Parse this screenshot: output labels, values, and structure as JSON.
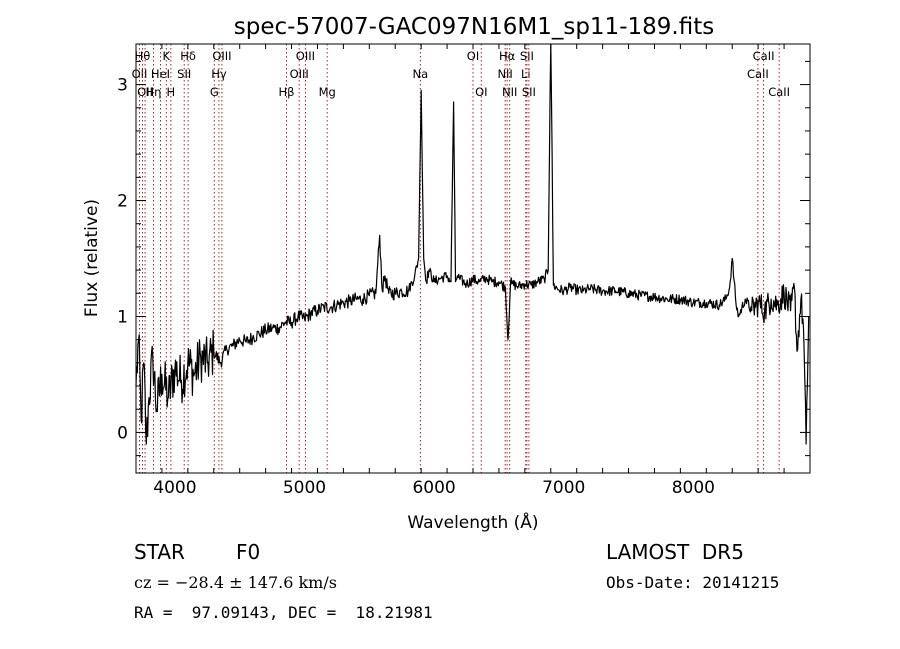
{
  "chart_data": {
    "type": "line",
    "title": "spec-57007-GAC097N16M1_sp11-189.fits",
    "xlabel": "Wavelength (Å)",
    "ylabel": "Flux (relative)",
    "xlim": [
      3700,
      8900
    ],
    "ylim": [
      -0.35,
      3.35
    ],
    "xticks": [
      4000,
      5000,
      6000,
      7000,
      8000
    ],
    "yticks": [
      0,
      1,
      2,
      3
    ],
    "grid": false,
    "colors": {
      "spectrum": "#000000",
      "line_marker": "#b22222",
      "axes": "#000000"
    },
    "series": [
      {
        "x": [
          3700,
          3720,
          3740,
          3760,
          3780,
          3800,
          3830,
          3860,
          3900,
          3950,
          4000,
          4050,
          4100,
          4150,
          4200,
          4250,
          4300,
          4350,
          4400,
          4450,
          4500,
          4550,
          4600,
          4650,
          4700,
          4750,
          4800,
          4850,
          4900,
          4950,
          5000,
          5050,
          5100,
          5150,
          5200,
          5250,
          5300,
          5350,
          5400,
          5450,
          5500,
          5550,
          5580,
          5600,
          5620,
          5650,
          5700,
          5750,
          5800,
          5850,
          5880,
          5900,
          5920,
          5940,
          5960,
          6000,
          6050,
          6100,
          6130,
          6150,
          6165,
          6180,
          6200,
          6250,
          6300,
          6350,
          6400,
          6450,
          6500,
          6550,
          6570,
          6590,
          6600,
          6650,
          6700,
          6750,
          6800,
          6850,
          6880,
          6900,
          6920,
          6950,
          7000,
          7050,
          7100,
          7150,
          7200,
          7300,
          7400,
          7500,
          7600,
          7700,
          7800,
          7900,
          8000,
          8100,
          8200,
          8250,
          8280,
          8300,
          8330,
          8350,
          8400,
          8450,
          8500,
          8550,
          8600,
          8650,
          8700,
          8750,
          8780,
          8800,
          8830,
          8850,
          8870,
          8890
        ],
        "y": [
          0.4,
          0.8,
          0.1,
          0.6,
          -0.1,
          0.3,
          0.65,
          0.2,
          0.5,
          0.3,
          0.55,
          0.45,
          0.6,
          0.5,
          0.65,
          0.6,
          0.7,
          0.6,
          0.72,
          0.75,
          0.8,
          0.78,
          0.82,
          0.85,
          0.88,
          0.9,
          0.9,
          0.95,
          0.95,
          1.0,
          0.98,
          1.03,
          1.05,
          1.08,
          1.08,
          1.1,
          1.12,
          1.13,
          1.15,
          1.15,
          1.18,
          1.2,
          1.7,
          1.22,
          1.35,
          1.2,
          1.2,
          1.22,
          1.22,
          1.35,
          1.5,
          2.95,
          1.5,
          1.3,
          1.4,
          1.3,
          1.33,
          1.35,
          1.3,
          2.85,
          1.3,
          1.35,
          1.32,
          1.28,
          1.32,
          1.3,
          1.33,
          1.3,
          1.3,
          1.25,
          0.8,
          1.3,
          1.28,
          1.26,
          1.28,
          1.27,
          1.3,
          1.32,
          1.4,
          3.5,
          1.27,
          1.24,
          1.22,
          1.25,
          1.23,
          1.22,
          1.24,
          1.22,
          1.22,
          1.2,
          1.18,
          1.17,
          1.15,
          1.15,
          1.12,
          1.12,
          1.1,
          1.15,
          1.25,
          1.5,
          1.1,
          1.0,
          1.15,
          1.05,
          1.12,
          1.05,
          1.15,
          1.1,
          1.2,
          1.05,
          1.25,
          0.7,
          1.15,
          0.9,
          -0.1,
          1.0
        ]
      }
    ],
    "line_markers": [
      {
        "wavelength": 3727,
        "label": "OII",
        "row": 1
      },
      {
        "wavelength": 3750,
        "label": "Hθ",
        "row": 0
      },
      {
        "wavelength": 3770,
        "label": "OII",
        "row": 2
      },
      {
        "wavelength": 3835,
        "label": "Hη",
        "row": 2
      },
      {
        "wavelength": 3889,
        "label": "HeI",
        "row": 1
      },
      {
        "wavelength": 3934,
        "label": "K",
        "row": 0
      },
      {
        "wavelength": 3969,
        "label": "H",
        "row": 2
      },
      {
        "wavelength": 4072,
        "label": "SII",
        "row": 1
      },
      {
        "wavelength": 4102,
        "label": "Hδ",
        "row": 0
      },
      {
        "wavelength": 4304,
        "label": "G",
        "row": 2
      },
      {
        "wavelength": 4340,
        "label": "Hγ",
        "row": 1
      },
      {
        "wavelength": 4363,
        "label": "OIII",
        "row": 0
      },
      {
        "wavelength": 4861,
        "label": "Hβ",
        "row": 2
      },
      {
        "wavelength": 4959,
        "label": "OIII",
        "row": 1
      },
      {
        "wavelength": 5007,
        "label": "OIII",
        "row": 0
      },
      {
        "wavelength": 5175,
        "label": "Mg",
        "row": 2
      },
      {
        "wavelength": 5894,
        "label": "Na",
        "row": 1
      },
      {
        "wavelength": 6300,
        "label": "OI",
        "row": 0
      },
      {
        "wavelength": 6364,
        "label": "OI",
        "row": 2
      },
      {
        "wavelength": 6548,
        "label": "NII",
        "row": 1
      },
      {
        "wavelength": 6563,
        "label": "Hα",
        "row": 0
      },
      {
        "wavelength": 6583,
        "label": "NII",
        "row": 2
      },
      {
        "wavelength": 6707,
        "label": "Li",
        "row": 1
      },
      {
        "wavelength": 6716,
        "label": "SII",
        "row": 0
      },
      {
        "wavelength": 6731,
        "label": "SII",
        "row": 2
      },
      {
        "wavelength": 8498,
        "label": "CaII",
        "row": 1
      },
      {
        "wavelength": 8542,
        "label": "CaII",
        "row": 0
      },
      {
        "wavelength": 8662,
        "label": "CaII",
        "row": 2
      }
    ]
  },
  "info": {
    "class_label": "STAR",
    "subclass_label": "F0",
    "survey": "LAMOST  DR5",
    "redshift_line": "cz = −28.4 ± 147.6 km/s",
    "obs_date": "Obs-Date: 20141215",
    "coords": "RA =  97.09143, DEC =  18.21981"
  }
}
